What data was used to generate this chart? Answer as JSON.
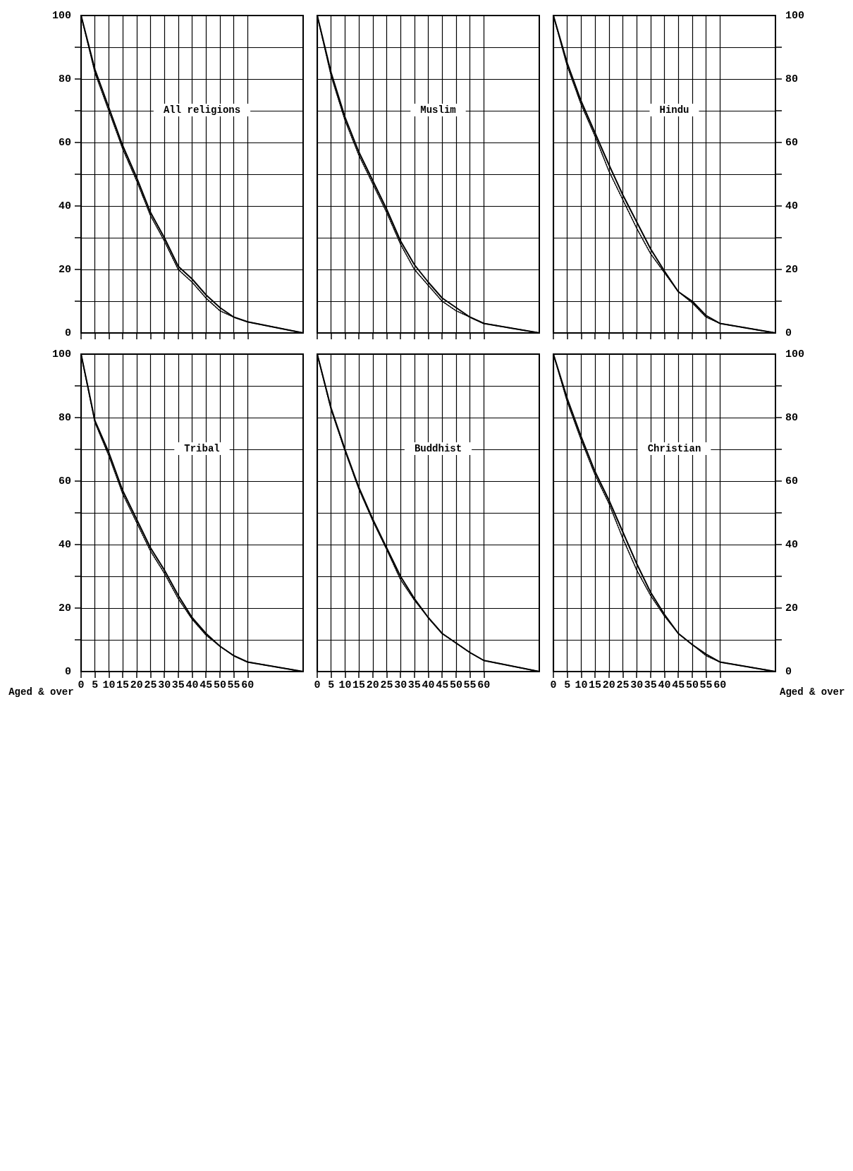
{
  "chart_data": [
    {
      "type": "line",
      "title": "All religions",
      "x": [
        0,
        5,
        10,
        15,
        20,
        25,
        30,
        35,
        40,
        45,
        50,
        55,
        60,
        80
      ],
      "xlim": [
        0,
        80
      ],
      "xticks": [
        0,
        5,
        10,
        15,
        20,
        25,
        30,
        35,
        40,
        45,
        50,
        55,
        60
      ],
      "ylim": [
        0,
        100
      ],
      "yticks": [
        0,
        {
          "value": 10,
          "label": null
        },
        20,
        {
          "value": 30,
          "label": null
        },
        40,
        {
          "value": 50,
          "label": null
        },
        60,
        {
          "value": 70,
          "label": null
        },
        80,
        {
          "value": 90,
          "label": null
        },
        100
      ],
      "grid": true,
      "tick_labels": "y",
      "series": [
        {
          "color": "#000000",
          "line_style": "solid",
          "values": [
            100,
            83,
            71,
            59,
            49,
            38,
            30,
            21,
            17,
            12,
            8,
            5,
            3.5,
            0
          ]
        },
        {
          "color": "#000000",
          "line_style": "dotted",
          "values": [
            100,
            82,
            70,
            58,
            48,
            37,
            29,
            20,
            16,
            11,
            7,
            5,
            3.5,
            0
          ]
        }
      ]
    },
    {
      "type": "line",
      "title": "Muslim",
      "x": [
        0,
        5,
        10,
        15,
        20,
        25,
        30,
        35,
        40,
        45,
        50,
        55,
        60,
        80
      ],
      "xlim": [
        0,
        80
      ],
      "xticks": [
        0,
        5,
        10,
        15,
        20,
        25,
        30,
        35,
        40,
        45,
        50,
        55,
        60
      ],
      "ylim": [
        0,
        100
      ],
      "yticks": [
        0,
        {
          "value": 10,
          "label": null
        },
        20,
        {
          "value": 30,
          "label": null
        },
        40,
        {
          "value": 50,
          "label": null
        },
        60,
        {
          "value": 70,
          "label": null
        },
        80,
        {
          "value": 90,
          "label": null
        },
        100
      ],
      "grid": true,
      "tick_labels": false,
      "series": [
        {
          "color": "#000000",
          "line_style": "solid",
          "values": [
            100,
            82,
            68,
            57,
            48,
            39,
            29,
            21.5,
            16,
            11,
            8,
            5,
            3,
            0
          ]
        },
        {
          "color": "#000000",
          "line_style": "dotted",
          "values": [
            100,
            81,
            67,
            56,
            47,
            38,
            28,
            20,
            15,
            10,
            7,
            5,
            3,
            0
          ]
        }
      ]
    },
    {
      "type": "line",
      "title": "Hindu",
      "x": [
        0,
        5,
        10,
        15,
        20,
        25,
        30,
        35,
        40,
        45,
        50,
        55,
        60,
        80
      ],
      "xlim": [
        0,
        80
      ],
      "xticks": [
        0,
        5,
        10,
        15,
        20,
        25,
        30,
        35,
        40,
        45,
        50,
        55,
        60
      ],
      "ylim": [
        0,
        100
      ],
      "yticks": [
        0,
        {
          "value": 10,
          "label": null
        },
        20,
        {
          "value": 30,
          "label": null
        },
        40,
        {
          "value": 50,
          "label": null
        },
        60,
        {
          "value": 70,
          "label": null
        },
        80,
        {
          "value": 90,
          "label": null
        },
        100
      ],
      "grid": true,
      "tick_labels": "y",
      "series": [
        {
          "color": "#000000",
          "line_style": "solid",
          "values": [
            100,
            85,
            73,
            63,
            53,
            43.5,
            35,
            26.5,
            19.5,
            13,
            10,
            5.5,
            3,
            0
          ]
        },
        {
          "color": "#000000",
          "line_style": "dotted",
          "values": [
            100,
            84,
            72,
            62,
            51,
            42,
            33,
            25,
            19,
            13,
            9.5,
            5,
            3,
            0
          ]
        }
      ]
    },
    {
      "type": "line",
      "title": "Tribal",
      "xlabel": "Aged & over",
      "x": [
        0,
        5,
        10,
        15,
        20,
        25,
        30,
        35,
        40,
        45,
        50,
        55,
        60,
        80
      ],
      "xlim": [
        0,
        80
      ],
      "xticks": [
        0,
        5,
        10,
        15,
        20,
        25,
        30,
        35,
        40,
        45,
        50,
        55,
        60
      ],
      "ylim": [
        0,
        100
      ],
      "yticks": [
        0,
        {
          "value": 10,
          "label": null
        },
        20,
        {
          "value": 30,
          "label": null
        },
        40,
        {
          "value": 50,
          "label": null
        },
        60,
        {
          "value": 70,
          "label": null
        },
        80,
        {
          "value": 90,
          "label": null
        },
        100
      ],
      "grid": true,
      "series": [
        {
          "color": "#000000",
          "line_style": "solid",
          "values": [
            100,
            79,
            69,
            57,
            48,
            39,
            32,
            24,
            17,
            12,
            8,
            5,
            3,
            0
          ]
        },
        {
          "color": "#000000",
          "line_style": "dotted",
          "values": [
            100,
            78.5,
            68,
            56,
            47,
            38,
            31,
            23,
            16.5,
            11.5,
            8,
            5,
            3,
            0
          ]
        }
      ]
    },
    {
      "type": "line",
      "title": "Buddhist",
      "x": [
        0,
        5,
        10,
        15,
        20,
        25,
        30,
        35,
        40,
        45,
        50,
        55,
        60,
        80
      ],
      "xlim": [
        0,
        80
      ],
      "xticks": [
        0,
        5,
        10,
        15,
        20,
        25,
        30,
        35,
        40,
        45,
        50,
        55,
        60
      ],
      "ylim": [
        0,
        100
      ],
      "yticks": [
        0,
        {
          "value": 10,
          "label": null
        },
        20,
        {
          "value": 30,
          "label": null
        },
        40,
        {
          "value": 50,
          "label": null
        },
        60,
        {
          "value": 70,
          "label": null
        },
        80,
        {
          "value": 90,
          "label": null
        },
        100
      ],
      "grid": true,
      "tick_labels": "x",
      "series": [
        {
          "color": "#000000",
          "line_style": "solid",
          "values": [
            100,
            83,
            70,
            58,
            48,
            39,
            30,
            23,
            17,
            12,
            9,
            6,
            3.5,
            0
          ]
        },
        {
          "color": "#000000",
          "line_style": "dotted",
          "values": [
            100,
            82.5,
            69.5,
            57.5,
            47.5,
            38.5,
            29,
            22.5,
            17,
            12,
            9,
            6,
            3.5,
            0
          ]
        }
      ]
    },
    {
      "type": "line",
      "title": "Christian",
      "xlabel": "Aged & over",
      "x": [
        0,
        5,
        10,
        15,
        20,
        25,
        30,
        35,
        40,
        45,
        50,
        55,
        60,
        80
      ],
      "xlim": [
        0,
        80
      ],
      "xticks": [
        0,
        5,
        10,
        15,
        20,
        25,
        30,
        35,
        40,
        45,
        50,
        55,
        60
      ],
      "ylim": [
        0,
        100
      ],
      "yticks": [
        0,
        {
          "value": 10,
          "label": null
        },
        20,
        {
          "value": 30,
          "label": null
        },
        40,
        {
          "value": 50,
          "label": null
        },
        60,
        {
          "value": 70,
          "label": null
        },
        80,
        {
          "value": 90,
          "label": null
        },
        100
      ],
      "grid": true,
      "series": [
        {
          "color": "#000000",
          "line_style": "solid",
          "values": [
            100,
            86,
            74,
            63,
            54,
            44,
            34,
            25,
            18,
            12,
            8.5,
            5.5,
            3,
            0
          ]
        },
        {
          "color": "#000000",
          "line_style": "dotted",
          "values": [
            100,
            85,
            73,
            62,
            53,
            42,
            32,
            24,
            17.5,
            12,
            8.5,
            5,
            3,
            0
          ]
        }
      ]
    }
  ]
}
